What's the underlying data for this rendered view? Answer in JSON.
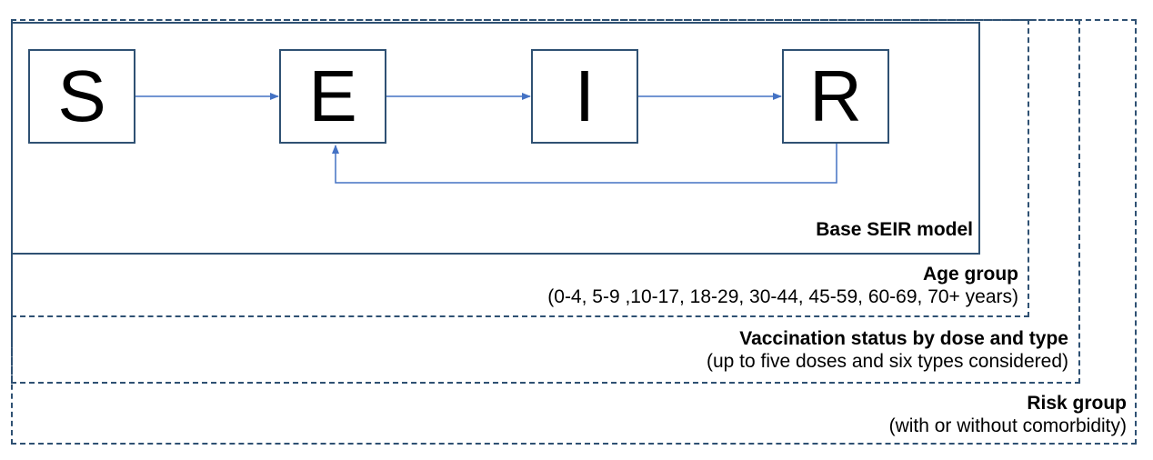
{
  "states": {
    "s": "S",
    "e": "E",
    "i": "I",
    "r": "R"
  },
  "layers": {
    "base": {
      "title": "Base SEIR model"
    },
    "age": {
      "title": "Age group",
      "detail": "(0-4, 5-9 ,10-17, 18-29, 30-44, 45-59, 60-69, 70+ years)"
    },
    "vaccination": {
      "title": "Vaccination status by dose and type",
      "detail": "(up to five doses and six types considered)"
    },
    "risk": {
      "title": "Risk group",
      "detail": "(with or without comorbidity)"
    }
  },
  "colors": {
    "border": "#2f5173",
    "arrow": "#4472c4"
  }
}
